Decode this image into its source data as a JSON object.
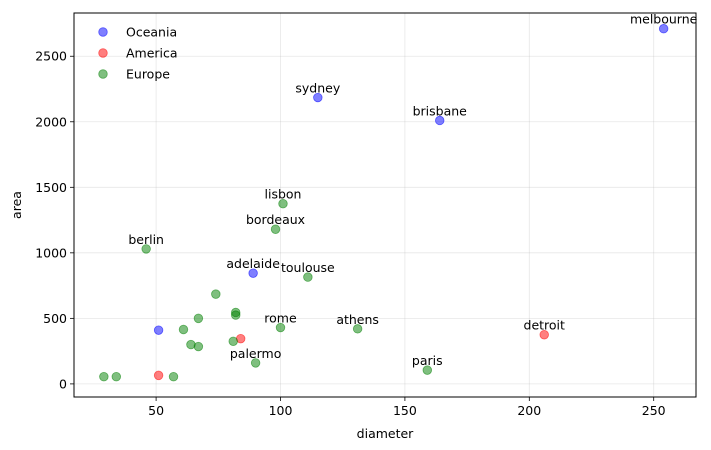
{
  "chart_data": {
    "type": "scatter",
    "title": "",
    "xlabel": "diameter",
    "ylabel": "area",
    "xlim": [
      17,
      267
    ],
    "ylim": [
      -100,
      2830
    ],
    "xticks": [
      50,
      100,
      150,
      200,
      250
    ],
    "yticks": [
      0,
      500,
      1000,
      1500,
      2000,
      2500
    ],
    "grid": true,
    "legend_position": "top-left",
    "series": [
      {
        "name": "Oceania",
        "color": "#0000ff",
        "points": [
          {
            "x": 254,
            "y": 2710,
            "label": "melbourne"
          },
          {
            "x": 115,
            "y": 2185,
            "label": "sydney"
          },
          {
            "x": 164,
            "y": 2010,
            "label": "brisbane"
          },
          {
            "x": 89,
            "y": 845,
            "label": "adelaide"
          },
          {
            "x": 51,
            "y": 410,
            "label": ""
          }
        ]
      },
      {
        "name": "America",
        "color": "#ff0000",
        "points": [
          {
            "x": 206,
            "y": 375,
            "label": "detroit"
          },
          {
            "x": 84,
            "y": 345,
            "label": ""
          },
          {
            "x": 51,
            "y": 65,
            "label": ""
          }
        ]
      },
      {
        "name": "Europe",
        "color": "#008000",
        "points": [
          {
            "x": 101,
            "y": 1375,
            "label": "lisbon"
          },
          {
            "x": 98,
            "y": 1180,
            "label": "bordeaux"
          },
          {
            "x": 46,
            "y": 1030,
            "label": "berlin"
          },
          {
            "x": 111,
            "y": 815,
            "label": "toulouse"
          },
          {
            "x": 74,
            "y": 685,
            "label": ""
          },
          {
            "x": 82,
            "y": 545,
            "label": ""
          },
          {
            "x": 82,
            "y": 525,
            "label": ""
          },
          {
            "x": 67,
            "y": 500,
            "label": ""
          },
          {
            "x": 100,
            "y": 430,
            "label": "rome"
          },
          {
            "x": 131,
            "y": 420,
            "label": "athens"
          },
          {
            "x": 61,
            "y": 415,
            "label": ""
          },
          {
            "x": 81,
            "y": 325,
            "label": ""
          },
          {
            "x": 64,
            "y": 300,
            "label": ""
          },
          {
            "x": 67,
            "y": 285,
            "label": ""
          },
          {
            "x": 90,
            "y": 160,
            "label": "palermo"
          },
          {
            "x": 159,
            "y": 105,
            "label": "paris"
          },
          {
            "x": 29,
            "y": 55,
            "label": ""
          },
          {
            "x": 34,
            "y": 55,
            "label": ""
          },
          {
            "x": 57,
            "y": 55,
            "label": ""
          }
        ]
      }
    ]
  }
}
